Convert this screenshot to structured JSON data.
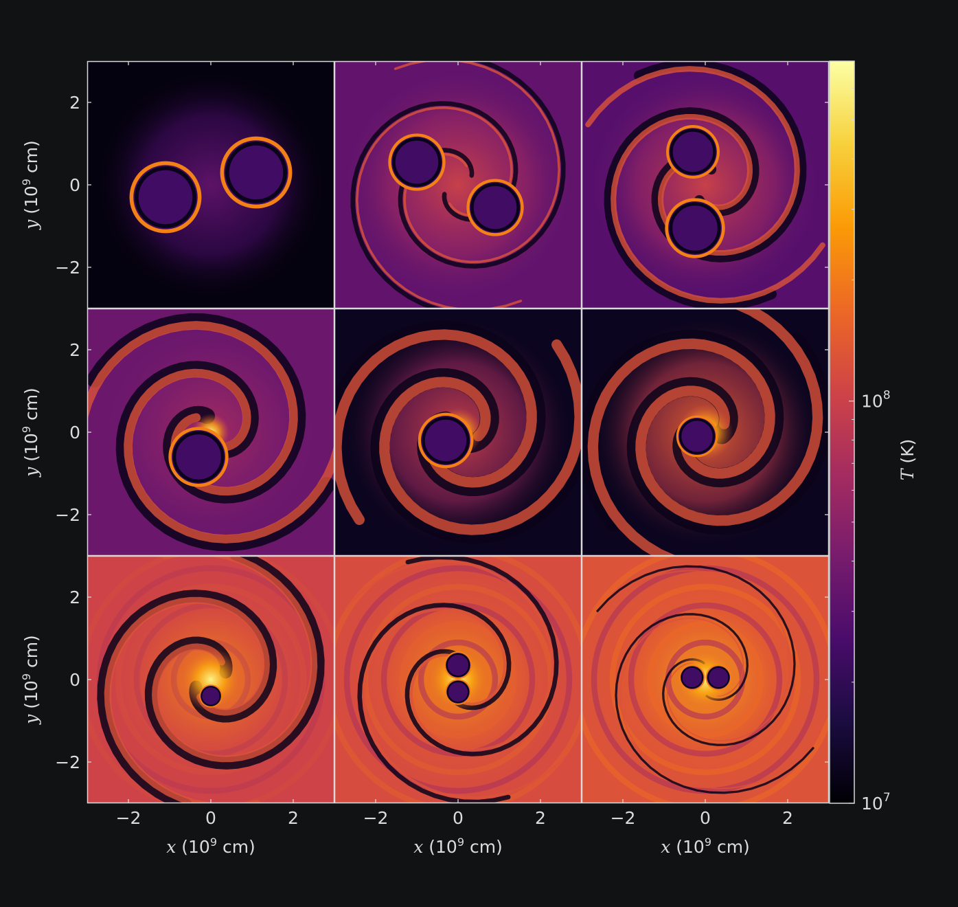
{
  "chart_data": {
    "type": "heatmap",
    "title": "",
    "layout": "3x3 grid of panels sharing axes",
    "colormap": "inferno",
    "grid": false,
    "x_axis": {
      "label_var": "x",
      "label_unit_pre": "(10",
      "label_exp": "9",
      "label_unit_post": " cm)",
      "range": [
        -3,
        3
      ],
      "ticks": [
        -2,
        0,
        2
      ],
      "tick_labels": [
        "−2",
        "0",
        "2"
      ]
    },
    "y_axis": {
      "label_var": "y",
      "label_unit_pre": "(10",
      "label_exp": "9",
      "label_unit_post": " cm)",
      "range": [
        -3,
        3
      ],
      "ticks": [
        -2,
        0,
        2
      ],
      "tick_labels": [
        "−2",
        "0",
        "2"
      ]
    },
    "colorbar": {
      "label_var": "T",
      "label_unit": "(K)",
      "scale": "log",
      "range": [
        10000000,
        700000000
      ],
      "ticks": [
        10000000,
        100000000
      ],
      "tick_base": "10",
      "tick_exps": [
        "7",
        "8"
      ],
      "colors": [
        "#000004",
        "#1b0c41",
        "#4a0c6b",
        "#781c6d",
        "#a52c60",
        "#cf4446",
        "#ed6925",
        "#fb9b06",
        "#f7d13d",
        "#fcffa4"
      ]
    },
    "panels": [
      {
        "row": 1,
        "col": 1,
        "bodies": [
          [
            -1.1,
            -0.3,
            0.78
          ],
          [
            1.1,
            0.3,
            0.78
          ]
        ],
        "bg": 0.02,
        "halo": 0.28,
        "arms": 0.0,
        "rings": 0.0,
        "core": 0.0
      },
      {
        "row": 1,
        "col": 2,
        "bodies": [
          [
            -1.0,
            0.55,
            0.62
          ],
          [
            0.9,
            -0.55,
            0.62
          ]
        ],
        "bg": 0.28,
        "halo": 0.55,
        "arms": 0.2,
        "rings": 0.0,
        "core": 0.0
      },
      {
        "row": 1,
        "col": 3,
        "bodies": [
          [
            -0.3,
            0.8,
            0.58
          ],
          [
            -0.25,
            -1.05,
            0.65
          ]
        ],
        "bg": 0.25,
        "halo": 0.55,
        "arms": 0.45,
        "rings": 0.0,
        "core": 0.0
      },
      {
        "row": 2,
        "col": 1,
        "bodies": [
          [
            -0.3,
            -0.6,
            0.65
          ]
        ],
        "bg": 0.3,
        "halo": 0.45,
        "arms": 0.7,
        "rings": 0.0,
        "core": 0.5
      },
      {
        "row": 2,
        "col": 2,
        "bodies": [
          [
            -0.3,
            -0.2,
            0.6
          ]
        ],
        "bg": 0.05,
        "halo": 0.55,
        "arms": 0.85,
        "rings": 0.0,
        "core": 0.65
      },
      {
        "row": 2,
        "col": 3,
        "bodies": [
          [
            -0.2,
            -0.1,
            0.45
          ]
        ],
        "bg": 0.05,
        "halo": 0.65,
        "arms": 0.85,
        "rings": 0.0,
        "core": 0.75
      },
      {
        "row": 3,
        "col": 1,
        "bodies": [
          [
            0.0,
            -0.4,
            0.25
          ]
        ],
        "bg": 0.55,
        "halo": 0.75,
        "arms": 0.55,
        "rings": 0.25,
        "core": 0.85
      },
      {
        "row": 3,
        "col": 2,
        "bodies": [
          [
            0.0,
            0.35,
            0.3
          ],
          [
            0.0,
            -0.3,
            0.28
          ]
        ],
        "bg": 0.58,
        "halo": 0.78,
        "arms": 0.2,
        "rings": 0.55,
        "core": 0.85
      },
      {
        "row": 3,
        "col": 3,
        "bodies": [
          [
            -0.32,
            0.05,
            0.28
          ],
          [
            0.32,
            0.05,
            0.28
          ]
        ],
        "bg": 0.6,
        "halo": 0.8,
        "arms": 0.1,
        "rings": 0.65,
        "core": 0.85
      }
    ]
  }
}
